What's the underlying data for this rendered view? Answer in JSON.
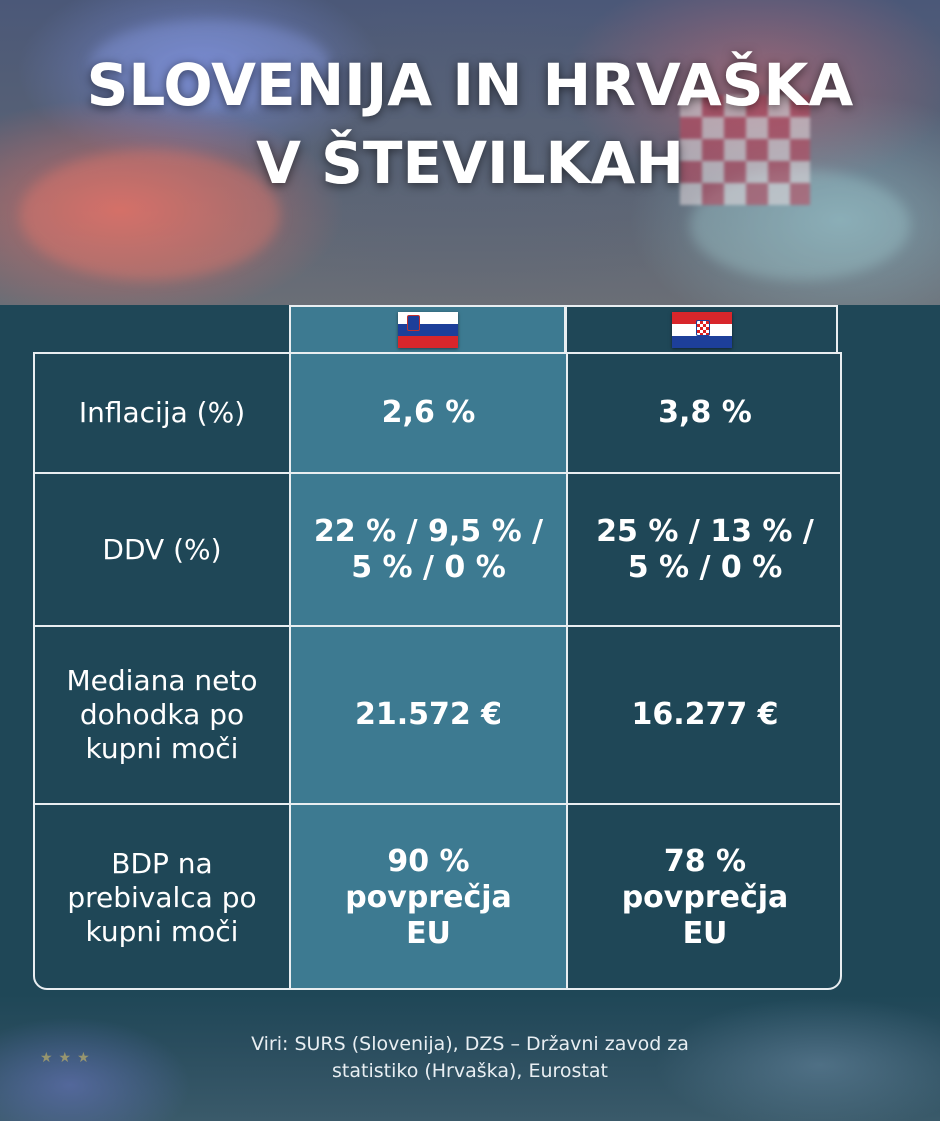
{
  "header": {
    "title_line1": "SLOVENIJA IN HRVAŠKA",
    "title_line2": "V ŠTEVILKAH"
  },
  "columns": {
    "slovenia_flag_icon": "slovenia-flag-icon",
    "croatia_flag_icon": "croatia-flag-icon"
  },
  "colors": {
    "background": "#1f4757",
    "slovenia_column": "#3d7a91",
    "border": "#e9eef1"
  },
  "table": {
    "rows": [
      {
        "label": [
          "Inflacija (%)"
        ],
        "slovenia": [
          "2,6 %"
        ],
        "croatia": [
          "3,8 %"
        ]
      },
      {
        "label": [
          "DDV (%)"
        ],
        "slovenia": [
          "22 % / 9,5 % /",
          "5 % / 0 %"
        ],
        "croatia": [
          "25 % / 13 % /",
          "5 % / 0 %"
        ]
      },
      {
        "label": [
          "Mediana neto",
          "dohodka po",
          "kupni moči"
        ],
        "slovenia": [
          "21.572 €"
        ],
        "croatia": [
          "16.277 €"
        ]
      },
      {
        "label": [
          "BDP na",
          "prebivalca po",
          "kupni moči"
        ],
        "slovenia": [
          "90 %",
          "povprečja",
          "EU"
        ],
        "croatia": [
          "78 %",
          "povprečja",
          "EU"
        ]
      }
    ]
  },
  "footer": {
    "sources_line1": "Viri: SURS (Slovenija), DZS – Državni zavod za",
    "sources_line2": "statistiko (Hrvaška), Eurostat"
  }
}
